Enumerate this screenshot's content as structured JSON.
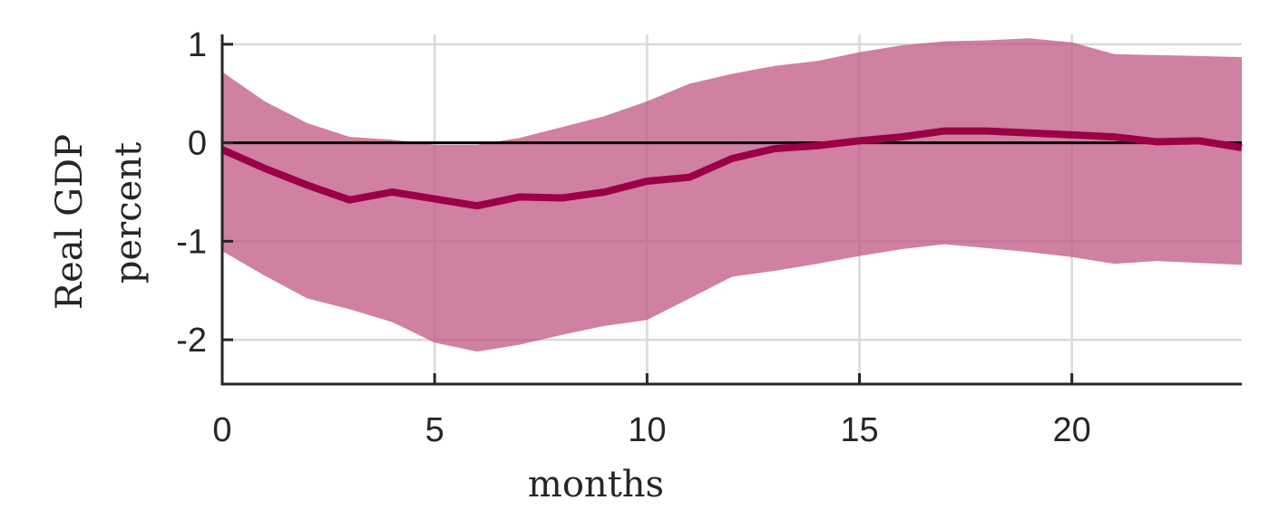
{
  "chart_data": {
    "type": "line",
    "title": "",
    "ylabel_lines": [
      "Real GDP",
      "percent"
    ],
    "xlabel": "months",
    "xlim": [
      0,
      24
    ],
    "ylim": [
      -2.45,
      1.1
    ],
    "x_ticks": [
      0,
      5,
      10,
      15,
      20
    ],
    "y_ticks": [
      -2,
      -1,
      0,
      1
    ],
    "y_tick_labels": [
      "-2",
      "-1",
      "0",
      "1"
    ],
    "grid": true,
    "zero_line": true,
    "colors": {
      "line": "#9b0047",
      "band": "#c05581",
      "axis": "#262626",
      "grid": "#d9d9d9",
      "zero": "#000000"
    },
    "x": [
      0,
      1,
      2,
      3,
      4,
      5,
      6,
      7,
      8,
      9,
      10,
      11,
      12,
      13,
      14,
      15,
      16,
      17,
      18,
      19,
      20,
      21,
      22,
      23,
      24
    ],
    "series": [
      {
        "role": "median",
        "values": [
          -0.07,
          -0.26,
          -0.43,
          -0.58,
          -0.5,
          -0.57,
          -0.64,
          -0.55,
          -0.56,
          -0.5,
          -0.39,
          -0.35,
          -0.16,
          -0.06,
          -0.03,
          0.02,
          0.06,
          0.12,
          0.12,
          0.1,
          0.08,
          0.06,
          0.01,
          0.02,
          -0.05
        ]
      },
      {
        "role": "upper",
        "values": [
          0.72,
          0.42,
          0.2,
          0.06,
          0.03,
          -0.02,
          -0.02,
          0.05,
          0.16,
          0.27,
          0.42,
          0.6,
          0.7,
          0.78,
          0.83,
          0.92,
          0.99,
          1.03,
          1.04,
          1.06,
          1.02,
          0.9,
          0.89,
          0.88,
          0.87
        ]
      },
      {
        "role": "lower",
        "values": [
          -1.1,
          -1.35,
          -1.58,
          -1.69,
          -1.82,
          -2.03,
          -2.12,
          -2.05,
          -1.95,
          -1.86,
          -1.8,
          -1.58,
          -1.36,
          -1.3,
          -1.23,
          -1.15,
          -1.08,
          -1.03,
          -1.07,
          -1.11,
          -1.16,
          -1.23,
          -1.2,
          -1.22,
          -1.24
        ]
      }
    ]
  }
}
